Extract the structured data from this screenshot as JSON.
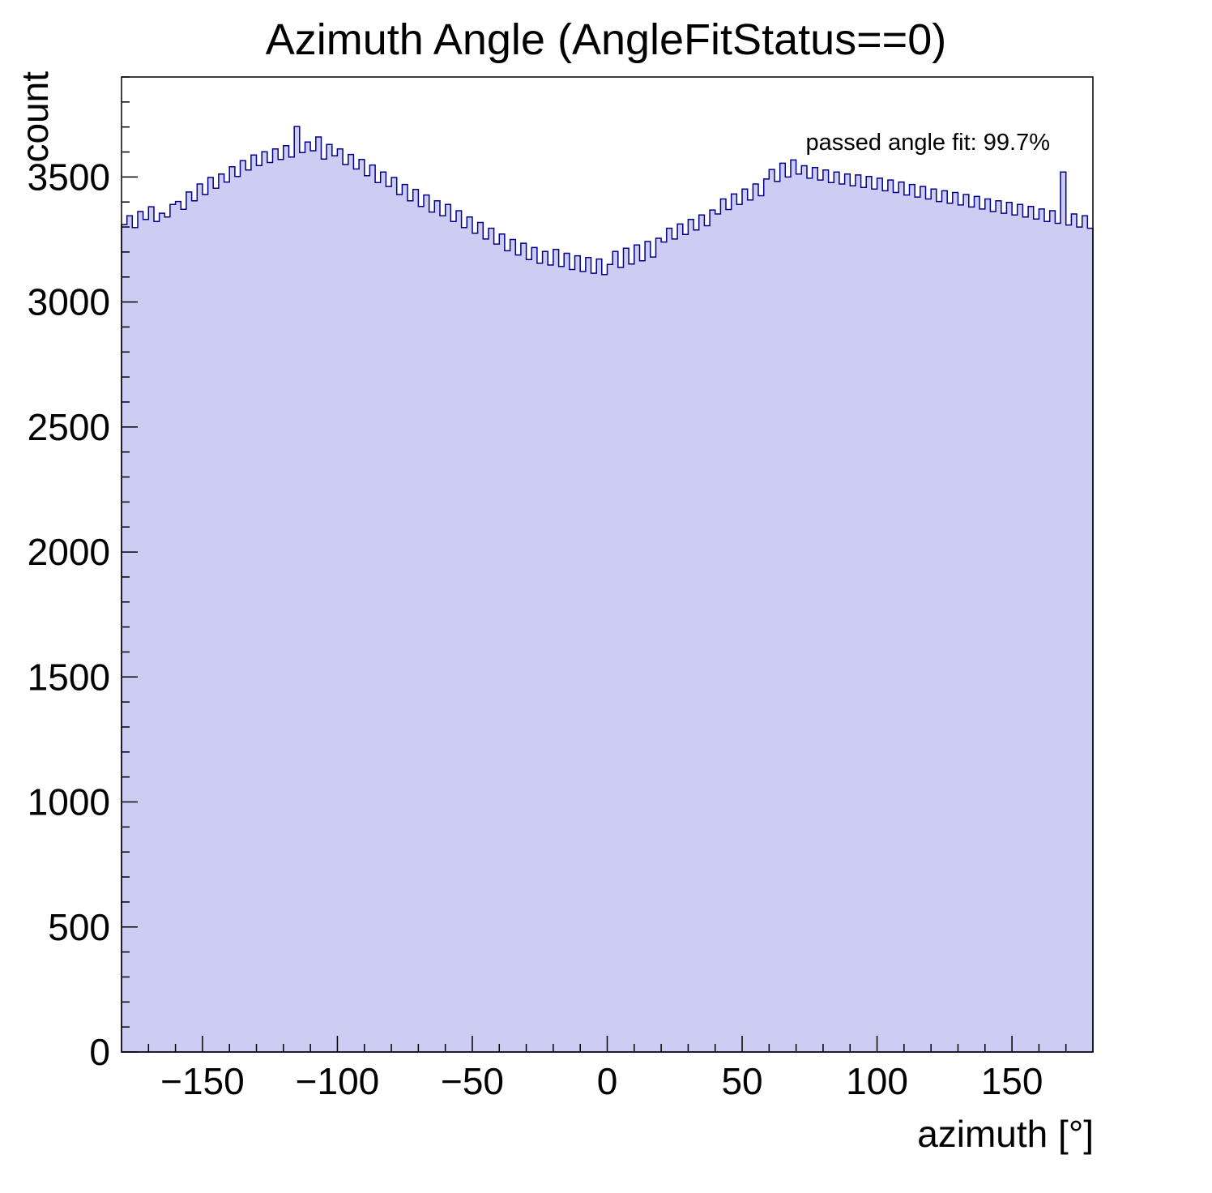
{
  "chart_data": {
    "type": "bar",
    "subtype": "histogram",
    "title": "Azimuth Angle (AngleFitStatus==0)",
    "xlabel": "azimuth [°]",
    "ylabel": "count",
    "annotation": "passed angle fit: 99.7%",
    "xlim": [
      -180,
      180
    ],
    "ylim": [
      0,
      3900
    ],
    "bin_width_deg": 2,
    "grid": false,
    "legend": "none",
    "fill_color": "#cdcdf4",
    "line_color": "#00008b",
    "frame_color": "#000000",
    "x_ticks": [
      -150,
      -100,
      -50,
      0,
      50,
      100,
      150
    ],
    "x_tick_labels": [
      "−150",
      "−100",
      "−50",
      "0",
      "50",
      "100",
      "150"
    ],
    "x_minor_step": 10,
    "y_ticks": [
      0,
      500,
      1000,
      1500,
      2000,
      2500,
      3000,
      3500
    ],
    "y_tick_labels": [
      "0",
      "500",
      "1000",
      "1500",
      "2000",
      "2500",
      "3000",
      "3500"
    ],
    "y_minor_step": 100,
    "values": [
      3310,
      3345,
      3298,
      3362,
      3330,
      3381,
      3322,
      3355,
      3340,
      3390,
      3402,
      3371,
      3440,
      3405,
      3472,
      3430,
      3498,
      3455,
      3512,
      3480,
      3541,
      3502,
      3565,
      3528,
      3588,
      3546,
      3601,
      3558,
      3612,
      3570,
      3625,
      3580,
      3702,
      3598,
      3640,
      3605,
      3660,
      3572,
      3630,
      3585,
      3612,
      3550,
      3590,
      3532,
      3570,
      3505,
      3548,
      3478,
      3520,
      3462,
      3498,
      3430,
      3470,
      3405,
      3450,
      3382,
      3428,
      3360,
      3405,
      3345,
      3390,
      3322,
      3365,
      3298,
      3340,
      3275,
      3318,
      3252,
      3295,
      3232,
      3272,
      3205,
      3250,
      3188,
      3235,
      3170,
      3218,
      3155,
      3202,
      3148,
      3210,
      3142,
      3195,
      3130,
      3185,
      3122,
      3178,
      3115,
      3172,
      3110,
      3150,
      3202,
      3138,
      3215,
      3152,
      3228,
      3165,
      3242,
      3180,
      3255,
      3240,
      3295,
      3252,
      3312,
      3270,
      3330,
      3288,
      3348,
      3305,
      3368,
      3352,
      3412,
      3370,
      3432,
      3390,
      3452,
      3408,
      3472,
      3425,
      3492,
      3530,
      3482,
      3555,
      3500,
      3568,
      3512,
      3545,
      3495,
      3538,
      3488,
      3528,
      3478,
      3520,
      3472,
      3512,
      3465,
      3508,
      3458,
      3502,
      3452,
      3495,
      3445,
      3488,
      3438,
      3480,
      3428,
      3470,
      3420,
      3462,
      3412,
      3452,
      3402,
      3445,
      3395,
      3438,
      3388,
      3430,
      3380,
      3422,
      3372,
      3412,
      3362,
      3405,
      3355,
      3398,
      3348,
      3390,
      3340,
      3382,
      3332,
      3372,
      3322,
      3365,
      3315,
      3520,
      3308,
      3352,
      3300,
      3345,
      3295
    ]
  }
}
